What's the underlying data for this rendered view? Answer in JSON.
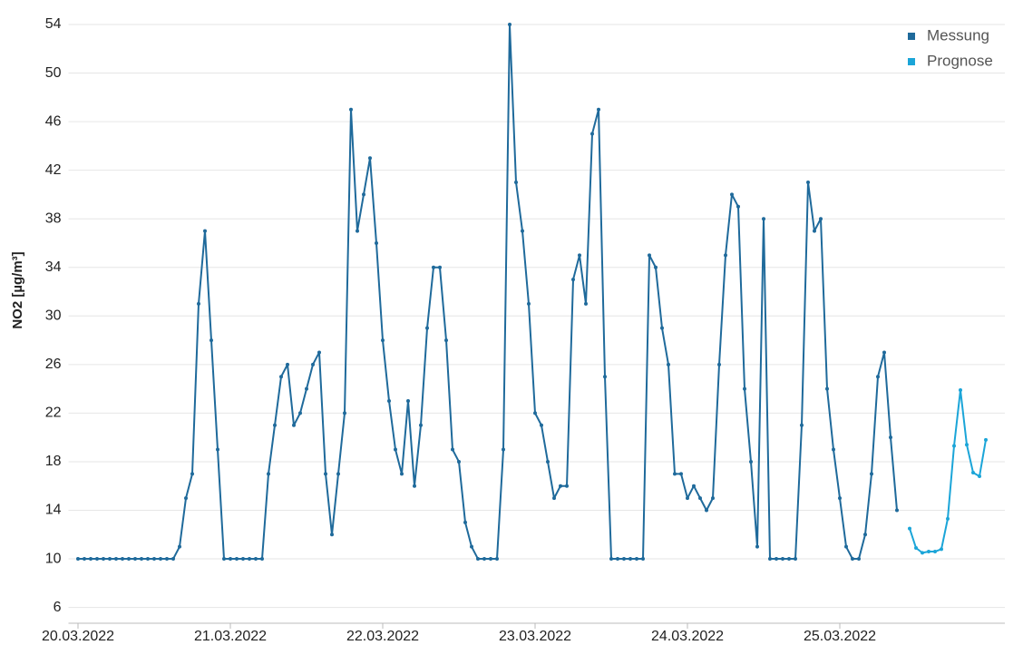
{
  "chart_data": {
    "type": "line",
    "y_label": "NO2 [µg/m³]",
    "x": [
      0,
      1,
      2,
      3,
      4,
      5,
      6,
      7,
      8,
      9,
      10,
      11,
      12,
      13,
      14,
      15,
      16,
      17,
      18,
      19,
      20,
      21,
      22,
      23,
      24,
      25,
      26,
      27,
      28,
      29,
      30,
      31,
      32,
      33,
      34,
      35,
      36,
      37,
      38,
      39,
      40,
      41,
      42,
      43,
      44,
      45,
      46,
      47,
      48,
      49,
      50,
      51,
      52,
      53,
      54,
      55,
      56,
      57,
      58,
      59,
      60,
      61,
      62,
      63,
      64,
      65,
      66,
      67,
      68,
      69,
      70,
      71,
      72,
      73,
      74,
      75,
      76,
      77,
      78,
      79,
      80,
      81,
      82,
      83,
      84,
      85,
      86,
      87,
      88,
      89,
      90,
      91,
      92,
      93,
      94,
      95,
      96,
      97,
      98,
      99,
      100,
      101,
      102,
      103,
      104,
      105,
      106,
      107,
      108,
      109,
      110,
      111,
      112,
      113,
      114,
      115,
      116,
      117,
      118,
      119,
      120,
      121,
      122,
      123,
      124,
      125,
      126,
      127,
      128,
      129,
      130,
      131,
      132,
      133,
      134,
      135,
      136,
      137,
      138,
      139,
      140,
      141,
      142,
      143
    ],
    "series": [
      {
        "name": "Messung",
        "color": "#1f6a9b",
        "values": [
          10,
          10,
          10,
          10,
          10,
          10,
          10,
          10,
          10,
          10,
          10,
          10,
          10,
          10,
          10,
          10,
          11,
          15,
          17,
          31,
          37,
          28,
          19,
          10,
          10,
          10,
          10,
          10,
          10,
          10,
          17,
          21,
          25,
          26,
          21,
          22,
          24,
          26,
          27,
          17,
          12,
          17,
          22,
          47,
          37,
          40,
          43,
          36,
          28,
          23,
          19,
          17,
          23,
          16,
          21,
          29,
          34,
          34,
          28,
          19,
          18,
          13,
          11,
          10,
          10,
          10,
          10,
          19,
          54,
          41,
          37,
          31,
          22,
          21,
          18,
          15,
          16,
          16,
          33,
          35,
          31,
          45,
          47,
          25,
          10,
          10,
          10,
          10,
          10,
          10,
          35,
          34,
          29,
          26,
          17,
          17,
          15,
          16,
          15,
          14,
          15,
          26,
          35,
          40,
          39,
          24,
          18,
          11,
          38,
          10,
          10,
          10,
          10,
          10,
          21,
          41,
          37,
          38,
          24,
          19,
          15,
          11,
          10,
          10,
          12,
          17,
          25,
          27,
          20,
          14,
          null,
          null,
          null,
          null,
          null,
          null,
          null,
          null,
          null,
          null,
          null,
          null,
          null,
          null
        ]
      },
      {
        "name": "Prognose",
        "color": "#1ba5d8",
        "values": [
          null,
          null,
          null,
          null,
          null,
          null,
          null,
          null,
          null,
          null,
          null,
          null,
          null,
          null,
          null,
          null,
          null,
          null,
          null,
          null,
          null,
          null,
          null,
          null,
          null,
          null,
          null,
          null,
          null,
          null,
          null,
          null,
          null,
          null,
          null,
          null,
          null,
          null,
          null,
          null,
          null,
          null,
          null,
          null,
          null,
          null,
          null,
          null,
          null,
          null,
          null,
          null,
          null,
          null,
          null,
          null,
          null,
          null,
          null,
          null,
          null,
          null,
          null,
          null,
          null,
          null,
          null,
          null,
          null,
          null,
          null,
          null,
          null,
          null,
          null,
          null,
          null,
          null,
          null,
          null,
          null,
          null,
          null,
          null,
          null,
          null,
          null,
          null,
          null,
          null,
          null,
          null,
          null,
          null,
          null,
          null,
          null,
          null,
          null,
          null,
          null,
          null,
          null,
          null,
          null,
          null,
          null,
          null,
          null,
          null,
          null,
          null,
          null,
          null,
          null,
          null,
          null,
          null,
          null,
          null,
          null,
          null,
          null,
          null,
          null,
          null,
          null,
          null,
          null,
          null,
          null,
          12.5,
          10.9,
          10.5,
          10.6,
          10.6,
          10.8,
          13.3,
          19.3,
          23.9,
          19.4,
          17.1,
          16.8,
          19.8
        ]
      }
    ],
    "xlim": [
      -1.5,
      146
    ],
    "xticks": [
      {
        "value": 0,
        "label": "20.03.2022"
      },
      {
        "value": 24,
        "label": "21.03.2022"
      },
      {
        "value": 48,
        "label": "22.03.2022"
      },
      {
        "value": 72,
        "label": "23.03.2022"
      },
      {
        "value": 96,
        "label": "24.03.2022"
      },
      {
        "value": 120,
        "label": "25.03.2022"
      }
    ],
    "ylim": [
      4.7,
      55
    ],
    "yticks": [
      6,
      10,
      14,
      18,
      22,
      26,
      30,
      34,
      38,
      42,
      46,
      50,
      54
    ],
    "grid": true,
    "legend": "top-right"
  }
}
